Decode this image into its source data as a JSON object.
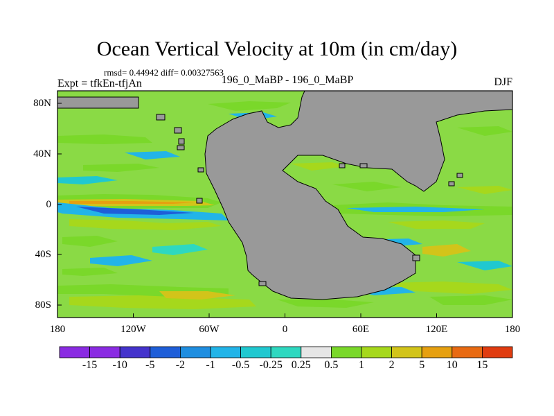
{
  "title": "Ocean Vertical Velocity at 10m (in cm/day)",
  "stats": "rmsd= 0.44942 diff= 0.00327563",
  "left_label": "Expt = tfkEn-tfjAn",
  "center_label": "196_0_MaBP - 196_0_MaBP",
  "right_label": "DJF",
  "axes": {
    "x_range": [
      -180,
      180
    ],
    "y_range": [
      -90,
      90
    ],
    "x_ticks": [
      "180",
      "120W",
      "60W",
      "0",
      "60E",
      "120E",
      "180"
    ],
    "y_ticks": [
      "80N",
      "40N",
      "0",
      "40S",
      "80S"
    ]
  },
  "colorbar": {
    "labels": [
      "-15",
      "-10",
      "-5",
      "-2",
      "-1",
      "-0.5",
      "-0.25",
      "0.25",
      "0.5",
      "1",
      "2",
      "5",
      "10",
      "15"
    ],
    "colors": [
      "#8a2be2",
      "#4433cc",
      "#1e5ed8",
      "#1f8ee0",
      "#22b4e8",
      "#20c8d0",
      "#2ed8c0",
      "#e6e6e6",
      "#7ad82a",
      "#a6d81c",
      "#d2c41a",
      "#e6a010",
      "#e86a12",
      "#e03c10"
    ]
  },
  "colors": {
    "land": "#999999",
    "ocean_background": "#e6e6e6",
    "frame": "#000000"
  }
}
